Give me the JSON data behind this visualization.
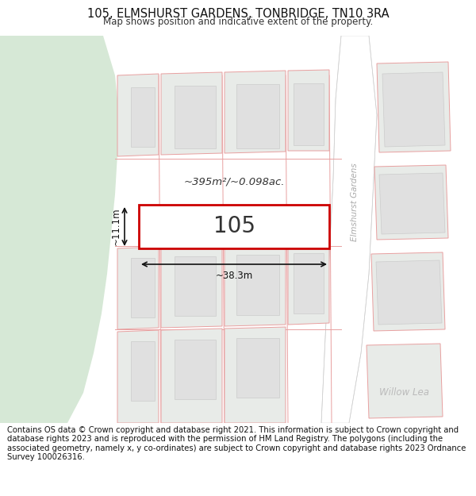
{
  "title": "105, ELMSHURST GARDENS, TONBRIDGE, TN10 3RA",
  "subtitle": "Map shows position and indicative extent of the property.",
  "footer": "Contains OS data © Crown copyright and database right 2021. This information is subject to Crown copyright and database rights 2023 and is reproduced with the permission of HM Land Registry. The polygons (including the associated geometry, namely x, y co-ordinates) are subject to Crown copyright and database rights 2023 Ordnance Survey 100026316.",
  "map_bg": "#f5f5f3",
  "highlight_fill": "#ffffff",
  "highlight_border": "#cc0000",
  "other_fill": "#e8ebe8",
  "other_border": "#e8a0a0",
  "park_fill": "#d6e8d6",
  "road_fill": "#ffffff",
  "area_label": "~395m²/~0.098ac.",
  "plot_number": "105",
  "dim_width": "~38.3m",
  "dim_height": "~11.1m",
  "road_label": "Elmshurst Gardens",
  "willow_label": "Willow Lea",
  "title_fontsize": 10.5,
  "subtitle_fontsize": 8.5,
  "footer_fontsize": 7.2,
  "title_color": "#111111",
  "subtitle_color": "#333333",
  "footer_color": "#111111",
  "road_label_color": "#aaaaaa",
  "willow_label_color": "#bbbbbb",
  "area_label_color": "#333333",
  "plot_num_color": "#333333",
  "dim_color": "#111111"
}
